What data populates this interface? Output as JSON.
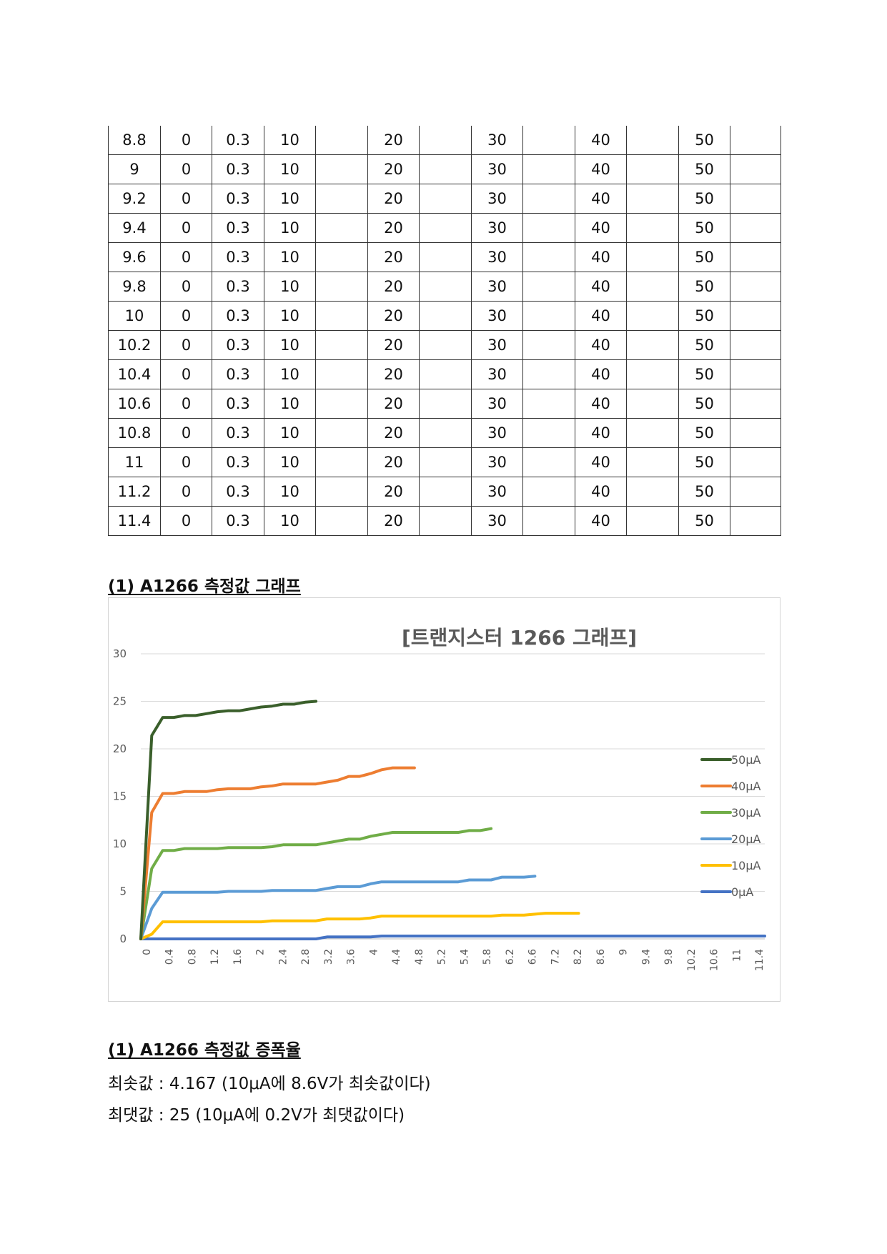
{
  "table": {
    "rows": [
      [
        "8.8",
        "0",
        "0.3",
        "10",
        "",
        "20",
        "",
        "30",
        "",
        "40",
        "",
        "50",
        ""
      ],
      [
        "9",
        "0",
        "0.3",
        "10",
        "",
        "20",
        "",
        "30",
        "",
        "40",
        "",
        "50",
        ""
      ],
      [
        "9.2",
        "0",
        "0.3",
        "10",
        "",
        "20",
        "",
        "30",
        "",
        "40",
        "",
        "50",
        ""
      ],
      [
        "9.4",
        "0",
        "0.3",
        "10",
        "",
        "20",
        "",
        "30",
        "",
        "40",
        "",
        "50",
        ""
      ],
      [
        "9.6",
        "0",
        "0.3",
        "10",
        "",
        "20",
        "",
        "30",
        "",
        "40",
        "",
        "50",
        ""
      ],
      [
        "9.8",
        "0",
        "0.3",
        "10",
        "",
        "20",
        "",
        "30",
        "",
        "40",
        "",
        "50",
        ""
      ],
      [
        "10",
        "0",
        "0.3",
        "10",
        "",
        "20",
        "",
        "30",
        "",
        "40",
        "",
        "50",
        ""
      ],
      [
        "10.2",
        "0",
        "0.3",
        "10",
        "",
        "20",
        "",
        "30",
        "",
        "40",
        "",
        "50",
        ""
      ],
      [
        "10.4",
        "0",
        "0.3",
        "10",
        "",
        "20",
        "",
        "30",
        "",
        "40",
        "",
        "50",
        ""
      ],
      [
        "10.6",
        "0",
        "0.3",
        "10",
        "",
        "20",
        "",
        "30",
        "",
        "40",
        "",
        "50",
        ""
      ],
      [
        "10.8",
        "0",
        "0.3",
        "10",
        "",
        "20",
        "",
        "30",
        "",
        "40",
        "",
        "50",
        ""
      ],
      [
        "11",
        "0",
        "0.3",
        "10",
        "",
        "20",
        "",
        "30",
        "",
        "40",
        "",
        "50",
        ""
      ],
      [
        "11.2",
        "0",
        "0.3",
        "10",
        "",
        "20",
        "",
        "30",
        "",
        "40",
        "",
        "50",
        ""
      ],
      [
        "11.4",
        "0",
        "0.3",
        "10",
        "",
        "20",
        "",
        "30",
        "",
        "40",
        "",
        "50",
        ""
      ]
    ]
  },
  "heading_graph": "(1) A1266 측정값 그래프",
  "heading_gain": "(1) A1266 측정값 증폭율",
  "min_line": "최솟값 : 4.167 (10μA에 8.6V가 최솟값이다)",
  "max_line": "최댓값 : 25 (10μA에 0.2V가 최댓값이다)",
  "chart_data": {
    "type": "line",
    "title": "[트랜지스터 1266 그래프]",
    "xlabel": "",
    "ylabel": "",
    "ylim": [
      0,
      30
    ],
    "yticks": [
      "0",
      "5",
      "10",
      "15",
      "20",
      "25",
      "30"
    ],
    "x_tick_labels": [
      "0",
      "0.4",
      "0.8",
      "1.2",
      "1.6",
      "2",
      "2.4",
      "2.8",
      "3.2",
      "3.6",
      "4",
      "4.4",
      "4.8",
      "5.2",
      "5.4",
      "5.8",
      "6.2",
      "6.6",
      "7.2",
      "8.2",
      "8.6",
      "9",
      "9.4",
      "9.8",
      "10.2",
      "10.6",
      "11",
      "11.4"
    ],
    "grid": true,
    "legend_position": "right",
    "series": [
      {
        "name": "50μA",
        "color": "#3a5f2b",
        "x": [
          0,
          0.2,
          0.4,
          0.6,
          0.8,
          1.0,
          1.2,
          1.4,
          1.6,
          1.8,
          2.0,
          2.2,
          2.4,
          2.6,
          2.8,
          3.0,
          3.2
        ],
        "values": [
          0,
          21.4,
          23.3,
          23.3,
          23.5,
          23.5,
          23.7,
          23.9,
          24.0,
          24.0,
          24.2,
          24.4,
          24.5,
          24.7,
          24.7,
          24.9,
          25.0
        ]
      },
      {
        "name": "40μA",
        "color": "#ed7d31",
        "x": [
          0,
          0.2,
          0.4,
          0.6,
          0.8,
          1.0,
          1.2,
          1.4,
          1.6,
          1.8,
          2.0,
          2.2,
          2.4,
          2.6,
          2.8,
          3.0,
          3.2,
          3.4,
          3.6,
          3.8,
          4.0,
          4.2,
          4.4,
          4.6,
          4.8,
          5.0
        ],
        "values": [
          0,
          13.3,
          15.3,
          15.3,
          15.5,
          15.5,
          15.5,
          15.7,
          15.8,
          15.8,
          15.8,
          16.0,
          16.1,
          16.3,
          16.3,
          16.3,
          16.3,
          16.5,
          16.7,
          17.1,
          17.1,
          17.4,
          17.8,
          18.0,
          18.0,
          18.0
        ]
      },
      {
        "name": "30μA",
        "color": "#70ad47",
        "x": [
          0,
          0.2,
          0.4,
          0.6,
          0.8,
          1.0,
          1.2,
          1.4,
          1.6,
          1.8,
          2.0,
          2.2,
          2.4,
          2.6,
          2.8,
          3.0,
          3.2,
          3.4,
          3.6,
          3.8,
          4.0,
          4.2,
          4.4,
          4.6,
          4.8,
          5.0,
          5.2,
          5.4,
          5.6,
          5.8,
          6.0,
          6.2,
          6.4
        ],
        "values": [
          0,
          7.4,
          9.3,
          9.3,
          9.5,
          9.5,
          9.5,
          9.5,
          9.6,
          9.6,
          9.6,
          9.6,
          9.7,
          9.9,
          9.9,
          9.9,
          9.9,
          10.1,
          10.3,
          10.5,
          10.5,
          10.8,
          11.0,
          11.2,
          11.2,
          11.2,
          11.2,
          11.2,
          11.2,
          11.2,
          11.4,
          11.4,
          11.6
        ]
      },
      {
        "name": "20μA",
        "color": "#5b9bd5",
        "x": [
          0,
          0.2,
          0.4,
          0.6,
          0.8,
          1.0,
          1.2,
          1.4,
          1.6,
          1.8,
          2.0,
          2.2,
          2.4,
          2.6,
          2.8,
          3.0,
          3.2,
          3.4,
          3.6,
          3.8,
          4.0,
          4.2,
          4.4,
          4.6,
          4.8,
          5.0,
          5.2,
          5.4,
          5.6,
          5.8,
          6.0,
          6.2,
          6.4,
          6.6,
          6.8,
          7.0,
          7.2
        ],
        "values": [
          0,
          3.2,
          4.9,
          4.9,
          4.9,
          4.9,
          4.9,
          4.9,
          5.0,
          5.0,
          5.0,
          5.0,
          5.1,
          5.1,
          5.1,
          5.1,
          5.1,
          5.3,
          5.5,
          5.5,
          5.5,
          5.8,
          6.0,
          6.0,
          6.0,
          6.0,
          6.0,
          6.0,
          6.0,
          6.0,
          6.2,
          6.2,
          6.2,
          6.5,
          6.5,
          6.5,
          6.6
        ]
      },
      {
        "name": "10μA",
        "color": "#ffc000",
        "x": [
          0,
          0.2,
          0.4,
          0.6,
          0.8,
          1.0,
          1.2,
          1.4,
          1.6,
          1.8,
          2.0,
          2.2,
          2.4,
          2.6,
          2.8,
          3.0,
          3.2,
          3.4,
          3.6,
          3.8,
          4.0,
          4.2,
          4.4,
          4.6,
          4.8,
          5.0,
          5.2,
          5.4,
          5.6,
          5.8,
          6.0,
          6.2,
          6.4,
          6.6,
          6.8,
          7.0,
          7.2,
          7.4,
          7.6,
          7.8,
          8.0
        ],
        "values": [
          0,
          0.5,
          1.8,
          1.8,
          1.8,
          1.8,
          1.8,
          1.8,
          1.8,
          1.8,
          1.8,
          1.8,
          1.9,
          1.9,
          1.9,
          1.9,
          1.9,
          2.1,
          2.1,
          2.1,
          2.1,
          2.2,
          2.4,
          2.4,
          2.4,
          2.4,
          2.4,
          2.4,
          2.4,
          2.4,
          2.4,
          2.4,
          2.4,
          2.5,
          2.5,
          2.5,
          2.6,
          2.7,
          2.7,
          2.7,
          2.7
        ]
      },
      {
        "name": "0μA",
        "color": "#4472c4",
        "x": [
          0,
          0.2,
          0.4,
          0.6,
          0.8,
          1.0,
          1.2,
          1.4,
          1.6,
          1.8,
          2.0,
          2.2,
          2.4,
          2.6,
          2.8,
          3.0,
          3.2,
          3.4,
          3.6,
          3.8,
          4.0,
          4.2,
          4.4,
          4.6,
          4.8,
          5.0,
          5.2,
          5.4,
          5.6,
          5.8,
          6.0,
          6.2,
          6.4,
          6.6,
          6.8,
          7.0,
          7.2,
          7.4,
          7.6,
          7.8,
          8.0,
          8.2,
          8.4,
          8.6,
          8.8,
          9.0,
          9.2,
          9.4,
          9.6,
          9.8,
          10.0,
          10.2,
          10.4,
          10.6,
          10.8,
          11.0,
          11.2,
          11.4
        ],
        "values": [
          0,
          0,
          0,
          0,
          0,
          0,
          0,
          0,
          0,
          0,
          0,
          0,
          0,
          0,
          0,
          0,
          0,
          0.2,
          0.2,
          0.2,
          0.2,
          0.2,
          0.3,
          0.3,
          0.3,
          0.3,
          0.3,
          0.3,
          0.3,
          0.3,
          0.3,
          0.3,
          0.3,
          0.3,
          0.3,
          0.3,
          0.3,
          0.3,
          0.3,
          0.3,
          0.3,
          0.3,
          0.3,
          0.3,
          0.3,
          0.3,
          0.3,
          0.3,
          0.3,
          0.3,
          0.3,
          0.3,
          0.3,
          0.3,
          0.3,
          0.3,
          0.3,
          0.3
        ]
      }
    ]
  }
}
